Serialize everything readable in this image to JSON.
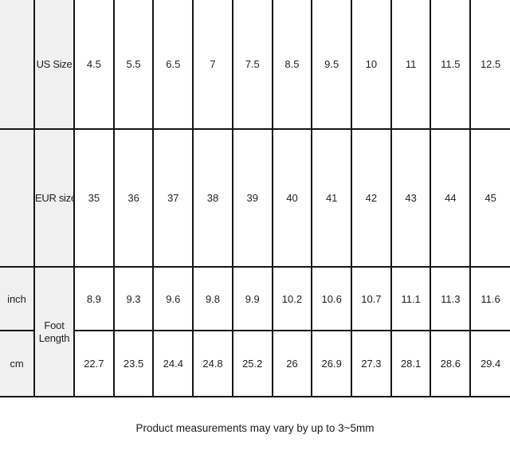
{
  "colors": {
    "table_border": "#161616",
    "header_fill": "#f0f0f0",
    "text": "#1f1f1f",
    "background": "#ffffff"
  },
  "chart_data": {
    "type": "table",
    "header_labels": {
      "us": "US Size",
      "eur": "EUR size",
      "foot_length": "Foot Length",
      "inch_unit": "inch",
      "cm_unit": "cm"
    },
    "us_sizes": [
      4.5,
      5.5,
      6.5,
      7,
      7.5,
      8.5,
      9.5,
      10,
      11,
      11.5,
      12.5
    ],
    "eur_sizes": [
      35,
      36,
      37,
      38,
      39,
      40,
      41,
      42,
      43,
      44,
      45
    ],
    "foot_length_inch": [
      8.9,
      9.3,
      9.6,
      9.8,
      9.9,
      10.2,
      10.6,
      10.7,
      11.1,
      11.3,
      11.6
    ],
    "foot_length_cm": [
      22.7,
      23.5,
      24.4,
      24.8,
      25.2,
      26,
      26.9,
      27.3,
      28.1,
      28.6,
      29.4
    ]
  },
  "footer": {
    "note": "Product measurements may vary by up to 3~5mm"
  }
}
